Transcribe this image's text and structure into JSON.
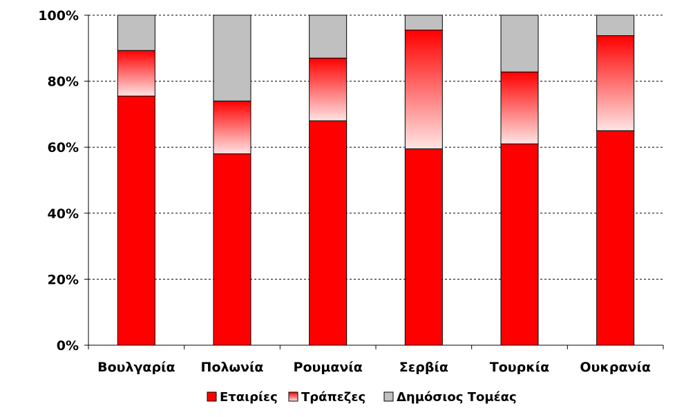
{
  "chart_data": {
    "type": "bar",
    "stacked": true,
    "categories": [
      "Βουλγαρία",
      "Πολωνία",
      "Ρουμανία",
      "Σερβία",
      "Τουρκία",
      "Ουκρανία"
    ],
    "series": [
      {
        "name": "Εταιρίες",
        "values": [
          75.5,
          58,
          68,
          59.5,
          61,
          65
        ],
        "color": "#ff0000"
      },
      {
        "name": "Τράπεζες",
        "values": [
          13.8,
          16,
          19,
          36,
          21.8,
          28.8
        ],
        "color_top": "#ff0000",
        "color_bottom": "#ffe0e0"
      },
      {
        "name": "Δημόσιος Τομέας",
        "values": [
          10.7,
          26,
          13,
          4.5,
          17.2,
          6.2
        ],
        "color": "#c0c0c0"
      }
    ],
    "ylim": [
      0,
      100
    ],
    "yticks": [
      0,
      20,
      40,
      60,
      80,
      100
    ],
    "ytick_labels": [
      "0%",
      "20%",
      "40%",
      "60%",
      "80%",
      "100%"
    ],
    "grid": true,
    "grid_style": "dashed",
    "legend_placement": "bottom"
  }
}
